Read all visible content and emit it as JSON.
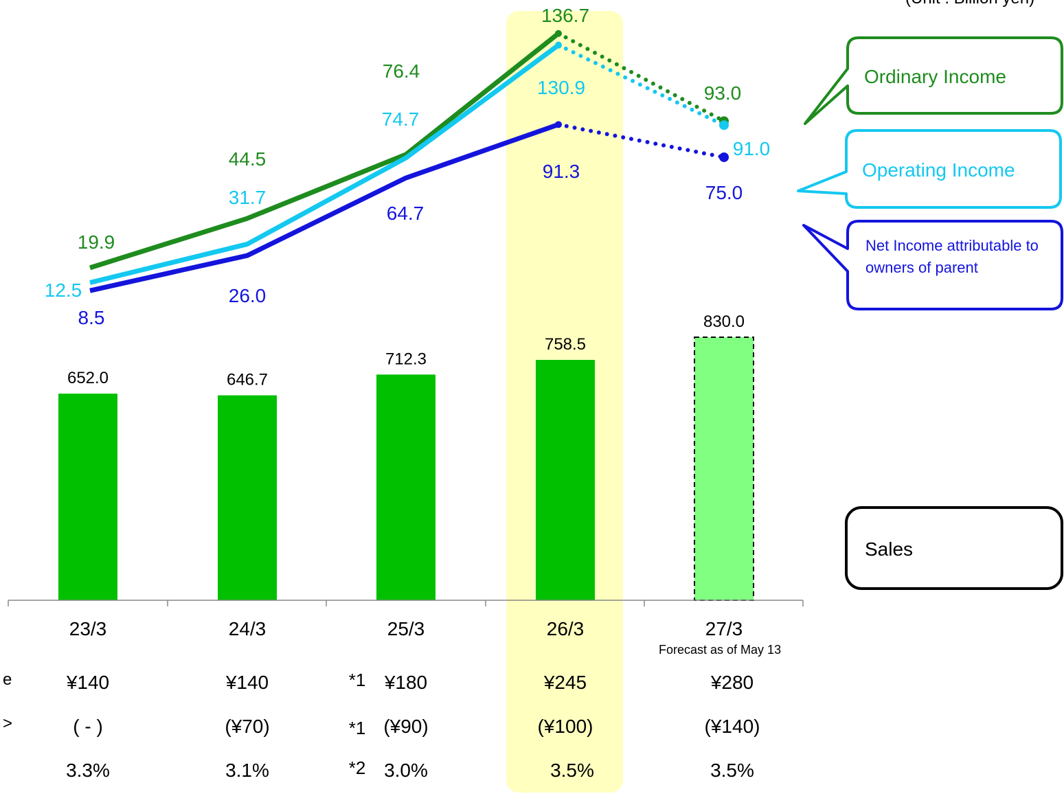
{
  "unit_note": "(Unit : Billion yen)",
  "legend": {
    "ordinary_income": "Ordinary Income",
    "operating_income": "Operating Income",
    "net_income": "Net Income attributable to owners of parent",
    "sales": "Sales"
  },
  "forecast_note": "Forecast  as of May 13",
  "colors": {
    "sales_bar": "#00C000",
    "sales_bar_forecast": "#80FF80",
    "ordinary_income": "#1E8C1E",
    "operating_income": "#14C8F0",
    "net_income": "#1414DC",
    "highlight": "#FFFFC0"
  },
  "chart_data": {
    "type": "bar",
    "categories": [
      "23/3",
      "24/3",
      "25/3",
      "26/3",
      "27/3"
    ],
    "forecast_index": 4,
    "highlight_index": 3,
    "series": [
      {
        "key": "sales",
        "name": "Sales",
        "type": "bar",
        "values": [
          652.0,
          646.7,
          712.3,
          758.5,
          830.0
        ],
        "labels": [
          "652.0",
          "646.7",
          "712.3",
          "758.5",
          "830.0"
        ]
      },
      {
        "key": "ordinary_income",
        "name": "Ordinary Income",
        "type": "line",
        "values": [
          19.9,
          44.5,
          76.4,
          136.7,
          93.0
        ],
        "labels": [
          "19.9",
          "44.5",
          "76.4",
          "136.7",
          "93.0"
        ]
      },
      {
        "key": "operating_income",
        "name": "Operating Income",
        "type": "line",
        "values": [
          12.5,
          31.7,
          74.7,
          130.9,
          91.0
        ],
        "labels": [
          "12.5",
          "31.7",
          "74.7",
          "130.9",
          "91.0"
        ]
      },
      {
        "key": "net_income",
        "name": "Net Income attributable to owners of parent",
        "type": "line",
        "values": [
          8.5,
          26.0,
          64.7,
          91.3,
          75.0
        ],
        "labels": [
          "8.5",
          "26.0",
          "64.7",
          "91.3",
          "75.0"
        ]
      }
    ],
    "table_rows": [
      {
        "label_fragment": "e",
        "notes": [
          "",
          "",
          "*1",
          "",
          ""
        ],
        "cells": [
          "¥140",
          "¥140",
          "¥180",
          "¥245",
          "¥280"
        ]
      },
      {
        "label_fragment": ">",
        "notes": [
          "",
          "",
          "*1",
          "",
          ""
        ],
        "cells": [
          "( - )",
          "(¥70)",
          "(¥90)",
          "(¥100)",
          "(¥140)"
        ]
      },
      {
        "label_fragment": "",
        "notes": [
          "",
          "",
          "*2",
          "",
          ""
        ],
        "cells": [
          "3.3%",
          "3.1%",
          "3.0%",
          "3.5%",
          "3.5%"
        ]
      }
    ]
  }
}
